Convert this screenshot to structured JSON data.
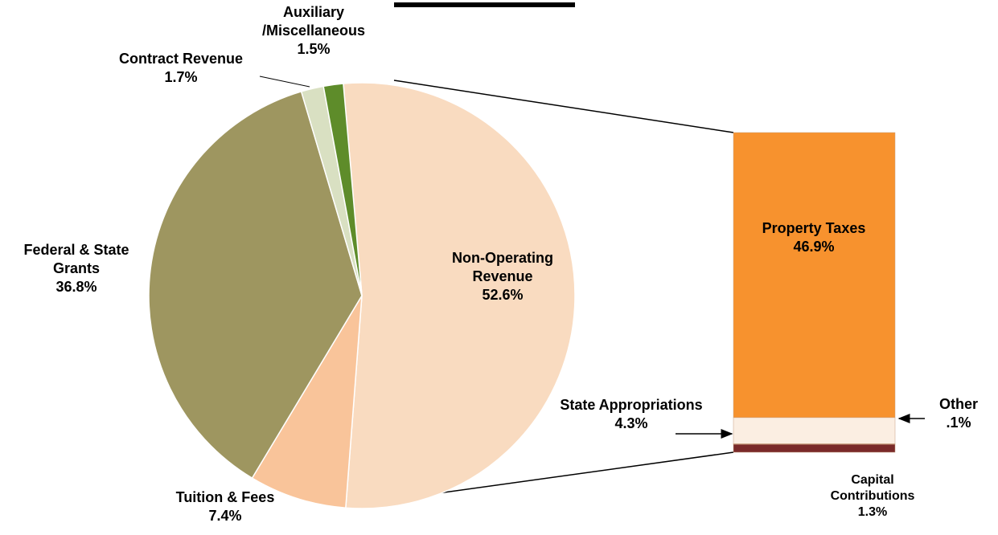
{
  "chart_data": [
    {
      "type": "pie",
      "categories": [
        "Non-Operating Revenue",
        "Tuition & Fees",
        "Federal & State Grants",
        "Contract Revenue",
        "Auxiliary /Miscellaneous"
      ],
      "values": [
        52.6,
        7.4,
        36.8,
        1.7,
        1.5
      ],
      "value_labels": [
        "52.6%",
        "7.4%",
        "36.8%",
        "1.7%",
        "1.5%"
      ],
      "colors": [
        "#f9dbc0",
        "#f9c49a",
        "#9e9660",
        "#d9e0c2",
        "#5e8c2a"
      ]
    },
    {
      "type": "stacked_bar",
      "categories": [
        "Property Taxes",
        "State Appropriations",
        "Other",
        "Capital Contributions"
      ],
      "values": [
        46.9,
        4.3,
        0.1,
        1.3
      ],
      "value_labels": [
        "46.9%",
        "4.3%",
        ".1%",
        "1.3%"
      ],
      "colors": [
        "#f7922e",
        "#fbeee2",
        "#d9b89a",
        "#7a2a2a"
      ]
    }
  ]
}
